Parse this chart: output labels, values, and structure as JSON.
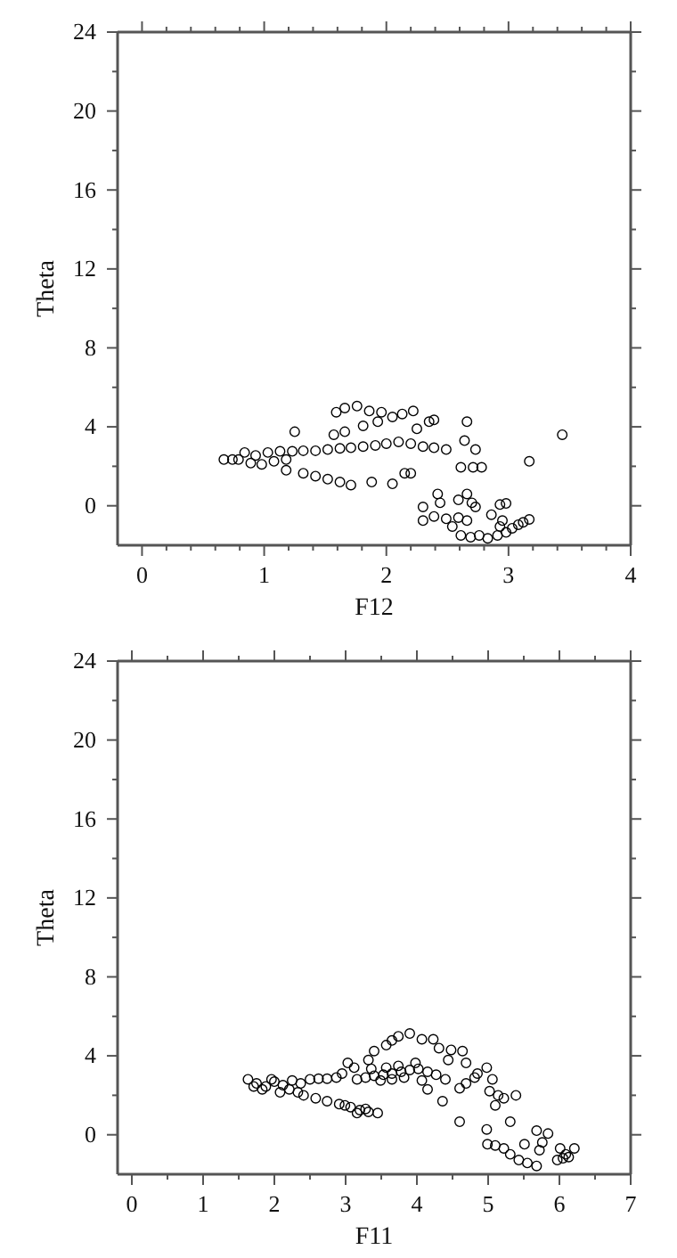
{
  "chart_data": [
    {
      "type": "scatter",
      "xlabel": "F12",
      "ylabel": "Theta",
      "marker": "circle",
      "color": "#000000",
      "grid": false,
      "xlim": [
        -0.2,
        4
      ],
      "ylim": [
        -2,
        24
      ],
      "xticks": [
        0,
        {
          "value": 0.2,
          "label": null
        },
        {
          "value": 0.4,
          "label": null
        },
        {
          "value": 0.6,
          "label": null
        },
        {
          "value": 0.8,
          "label": null
        },
        1,
        {
          "value": 1.2,
          "label": null
        },
        {
          "value": 1.4,
          "label": null
        },
        {
          "value": 1.6,
          "label": null
        },
        {
          "value": 1.8,
          "label": null
        },
        2,
        {
          "value": 2.2,
          "label": null
        },
        {
          "value": 2.4,
          "label": null
        },
        {
          "value": 2.6,
          "label": null
        },
        {
          "value": 2.8,
          "label": null
        },
        3,
        {
          "value": 3.2,
          "label": null
        },
        {
          "value": 3.4,
          "label": null
        },
        {
          "value": 3.6,
          "label": null
        },
        {
          "value": 3.8,
          "label": null
        },
        4
      ],
      "yticks": [
        0,
        {
          "value": 2,
          "label": null
        },
        4,
        {
          "value": 6,
          "label": null
        },
        8,
        {
          "value": 10,
          "label": null
        },
        12,
        {
          "value": 14,
          "label": null
        },
        16,
        {
          "value": 18,
          "label": null
        },
        20,
        {
          "value": 22,
          "label": null
        },
        24
      ],
      "x": [
        0.67,
        0.74,
        0.84,
        0.93,
        1.03,
        1.13,
        1.23,
        1.32,
        1.42,
        1.52,
        1.62,
        1.71,
        1.81,
        1.91,
        2.0,
        2.1,
        2.2,
        2.3,
        2.39,
        2.49,
        0.79,
        0.89,
        0.98,
        1.08,
        1.18,
        1.18,
        1.32,
        1.42,
        1.52,
        1.62,
        1.71,
        1.88,
        2.05,
        1.59,
        1.66,
        1.76,
        1.86,
        1.96,
        2.05,
        2.13,
        2.22,
        2.25,
        2.35,
        2.39,
        1.57,
        1.66,
        1.81,
        1.93,
        2.66,
        2.64,
        2.73,
        2.61,
        2.71,
        2.78,
        3.17,
        3.44,
        1.25,
        2.15,
        2.2,
        2.3,
        2.42,
        2.44,
        2.59,
        2.66,
        2.7,
        2.73,
        2.3,
        2.39,
        2.49,
        2.59,
        2.66,
        2.54,
        2.61,
        2.69,
        2.76,
        2.83,
        2.91,
        2.86,
        2.93,
        2.98,
        2.95,
        3.03,
        3.08,
        3.12,
        3.17,
        2.93,
        2.98
      ],
      "values": [
        2.34,
        2.34,
        2.7,
        2.55,
        2.7,
        2.76,
        2.76,
        2.79,
        2.79,
        2.85,
        2.91,
        2.94,
        3.0,
        3.06,
        3.15,
        3.24,
        3.15,
        3.0,
        2.94,
        2.85,
        2.34,
        2.16,
        2.1,
        2.25,
        2.34,
        1.8,
        1.65,
        1.5,
        1.35,
        1.2,
        1.05,
        1.2,
        1.11,
        4.74,
        4.95,
        5.05,
        4.8,
        4.74,
        4.5,
        4.65,
        4.8,
        3.9,
        4.26,
        4.35,
        3.6,
        3.75,
        4.05,
        4.26,
        4.26,
        3.3,
        2.85,
        1.95,
        1.95,
        1.95,
        2.25,
        3.6,
        3.75,
        1.65,
        1.65,
        -0.06,
        0.6,
        0.15,
        0.3,
        0.6,
        0.15,
        -0.06,
        -0.75,
        -0.54,
        -0.66,
        -0.6,
        -0.75,
        -1.05,
        -1.5,
        -1.59,
        -1.5,
        -1.65,
        -1.5,
        -0.45,
        0.06,
        0.12,
        -0.75,
        -1.14,
        -0.96,
        -0.84,
        -0.69,
        -1.05,
        -1.35
      ]
    },
    {
      "type": "scatter",
      "xlabel": "F11",
      "ylabel": "Theta",
      "marker": "circle",
      "color": "#000000",
      "grid": false,
      "xlim": [
        -0.2,
        7
      ],
      "ylim": [
        -2,
        24
      ],
      "xticks": [
        0,
        {
          "value": 0.5,
          "label": null
        },
        1,
        {
          "value": 1.5,
          "label": null
        },
        2,
        {
          "value": 2.5,
          "label": null
        },
        3,
        {
          "value": 3.5,
          "label": null
        },
        4,
        {
          "value": 4.5,
          "label": null
        },
        5,
        {
          "value": 5.5,
          "label": null
        },
        6,
        {
          "value": 6.5,
          "label": null
        },
        7
      ],
      "yticks": [
        0,
        {
          "value": 2,
          "label": null
        },
        4,
        {
          "value": 6,
          "label": null
        },
        8,
        {
          "value": 10,
          "label": null
        },
        12,
        {
          "value": 14,
          "label": null
        },
        16,
        {
          "value": 18,
          "label": null
        },
        20,
        {
          "value": 22,
          "label": null
        },
        24
      ],
      "x": [
        1.63,
        1.75,
        1.88,
        2.0,
        2.12,
        2.25,
        2.37,
        2.5,
        2.62,
        2.74,
        2.87,
        2.95,
        1.83,
        2.08,
        2.33,
        1.71,
        1.96,
        2.21,
        2.41,
        2.58,
        2.74,
        2.91,
        3.07,
        3.2,
        3.32,
        3.45,
        3.16,
        3.28,
        2.99,
        3.16,
        3.28,
        3.4,
        3.53,
        3.65,
        3.78,
        3.9,
        4.02,
        4.15,
        4.27,
        4.4,
        3.49,
        3.65,
        3.82,
        4.07,
        4.15,
        3.36,
        3.57,
        3.74,
        3.98,
        3.03,
        3.12,
        3.32,
        3.4,
        3.57,
        3.65,
        3.74,
        3.9,
        4.07,
        4.23,
        4.31,
        4.48,
        4.64,
        4.44,
        4.69,
        4.85,
        4.98,
        5.06,
        4.6,
        4.69,
        4.81,
        5.02,
        5.14,
        5.22,
        5.39,
        5.1,
        4.36,
        4.6,
        4.98,
        4.99,
        5.1,
        5.22,
        5.31,
        5.43,
        5.55,
        5.68,
        5.51,
        5.31,
        5.68,
        5.84,
        5.76,
        5.72,
        6.01,
        6.09,
        6.13,
        6.21,
        5.97,
        6.05
      ],
      "values": [
        2.81,
        2.6,
        2.45,
        2.69,
        2.51,
        2.75,
        2.6,
        2.81,
        2.84,
        2.84,
        2.9,
        3.1,
        2.3,
        2.15,
        2.15,
        2.45,
        2.81,
        2.3,
        2.0,
        1.85,
        1.7,
        1.55,
        1.4,
        1.25,
        1.16,
        1.1,
        1.1,
        1.31,
        1.49,
        2.81,
        2.9,
        2.99,
        3.04,
        3.1,
        3.19,
        3.28,
        3.34,
        3.19,
        3.04,
        2.81,
        2.75,
        2.81,
        2.9,
        2.75,
        2.3,
        3.34,
        3.4,
        3.49,
        3.64,
        3.64,
        3.4,
        3.79,
        4.24,
        4.54,
        4.78,
        4.99,
        5.13,
        4.84,
        4.84,
        4.39,
        4.3,
        4.24,
        3.79,
        3.64,
        3.1,
        3.4,
        2.81,
        2.36,
        2.6,
        2.9,
        2.21,
        2.0,
        1.85,
        2.0,
        1.49,
        1.7,
        0.66,
        0.27,
        -0.48,
        -0.54,
        -0.69,
        -0.99,
        -1.28,
        -1.43,
        -1.58,
        -0.48,
        0.66,
        0.21,
        0.06,
        -0.39,
        -0.78,
        -0.69,
        -0.99,
        -1.13,
        -0.69,
        -1.28,
        -1.19
      ]
    }
  ]
}
